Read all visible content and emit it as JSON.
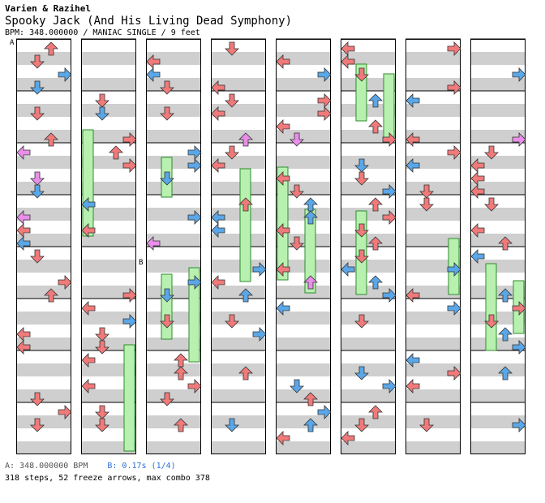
{
  "header": {
    "artist": "Varien & Razihel",
    "title": "Spooky Jack (And His Living Dead Symphony)",
    "info": "BPM: 348.000000 / MANIAC SINGLE / 9 feet"
  },
  "markers": [
    "A",
    "B"
  ],
  "bpm": {
    "a_text": "A: 348.000000 BPM",
    "b_text": "B: 0.17s (1/4)"
  },
  "footer": {
    "summary": "318 steps, 52 freeze arrows, max combo 378"
  },
  "colors": {
    "note_quarter": "#f07a7a",
    "note_eighth": "#5aa7e8",
    "note_sixteenth": "#e98ee9",
    "freeze": "#b8f0b0",
    "band": "#cfcfcf"
  }
}
